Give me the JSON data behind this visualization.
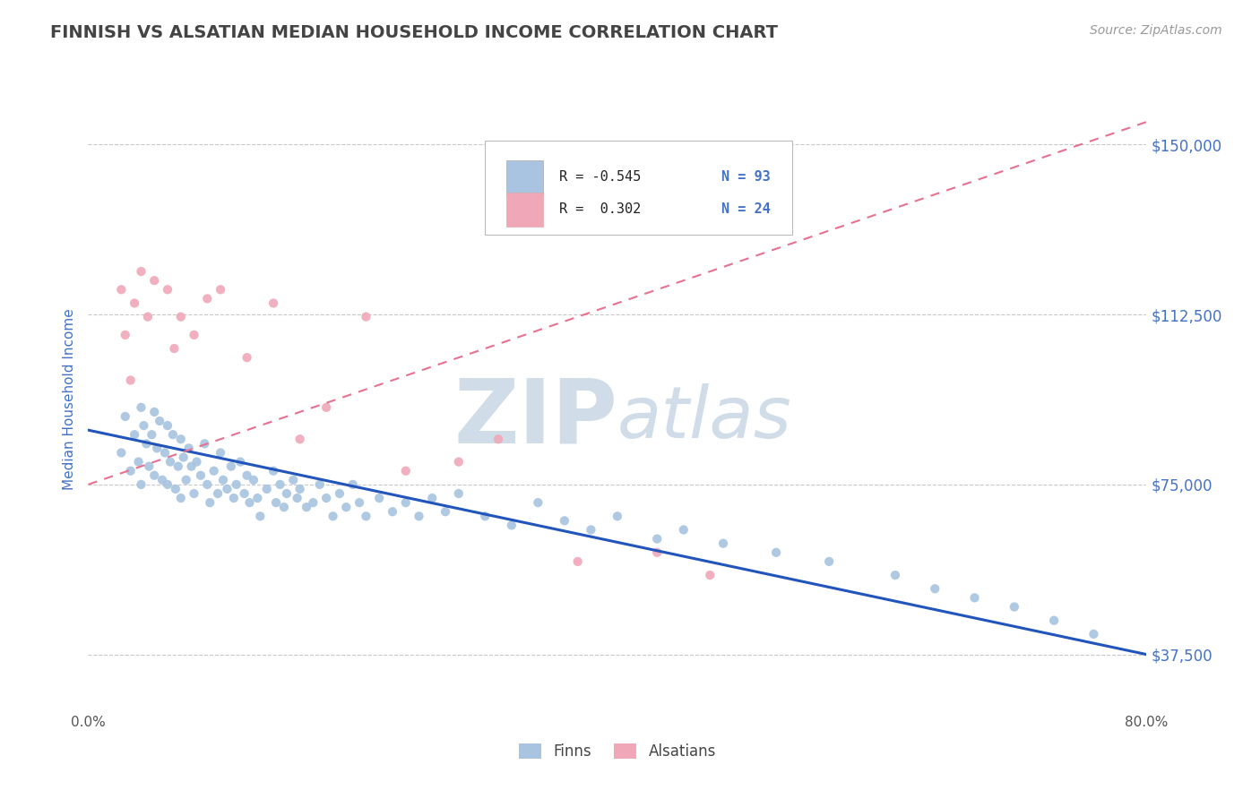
{
  "title": "FINNISH VS ALSATIAN MEDIAN HOUSEHOLD INCOME CORRELATION CHART",
  "source_text": "Source: ZipAtlas.com",
  "ylabel": "Median Household Income",
  "xlim": [
    0.0,
    0.8
  ],
  "ylim": [
    25000,
    162500
  ],
  "yticks": [
    37500,
    75000,
    112500,
    150000
  ],
  "ytick_labels": [
    "$37,500",
    "$75,000",
    "$112,500",
    "$150,000"
  ],
  "xtick_labels": [
    "0.0%",
    "80.0%"
  ],
  "background_color": "#ffffff",
  "grid_color": "#c8c8c8",
  "title_color": "#444444",
  "title_fontsize": 14,
  "finn_color": "#a8c4e0",
  "alsatian_color": "#f0a8b8",
  "finn_line_color": "#2255bb",
  "alsatian_line_color": "#e87090",
  "watermark_color": "#d0dce8",
  "axis_label_color": "#4472c4",
  "ytick_color": "#4472c4",
  "legend_text_color": "#222222",
  "legend_n_color": "#4472c4",
  "finn_scatter_x": [
    0.025,
    0.028,
    0.032,
    0.035,
    0.038,
    0.04,
    0.04,
    0.042,
    0.044,
    0.046,
    0.048,
    0.05,
    0.05,
    0.052,
    0.054,
    0.056,
    0.058,
    0.06,
    0.06,
    0.062,
    0.064,
    0.066,
    0.068,
    0.07,
    0.07,
    0.072,
    0.074,
    0.076,
    0.078,
    0.08,
    0.082,
    0.085,
    0.088,
    0.09,
    0.092,
    0.095,
    0.098,
    0.1,
    0.102,
    0.105,
    0.108,
    0.11,
    0.112,
    0.115,
    0.118,
    0.12,
    0.122,
    0.125,
    0.128,
    0.13,
    0.135,
    0.14,
    0.142,
    0.145,
    0.148,
    0.15,
    0.155,
    0.158,
    0.16,
    0.165,
    0.17,
    0.175,
    0.18,
    0.185,
    0.19,
    0.195,
    0.2,
    0.205,
    0.21,
    0.22,
    0.23,
    0.24,
    0.25,
    0.26,
    0.27,
    0.28,
    0.3,
    0.32,
    0.34,
    0.36,
    0.38,
    0.4,
    0.43,
    0.45,
    0.48,
    0.52,
    0.56,
    0.61,
    0.64,
    0.67,
    0.7,
    0.73,
    0.76
  ],
  "finn_scatter_y": [
    82000,
    90000,
    78000,
    86000,
    80000,
    92000,
    75000,
    88000,
    84000,
    79000,
    86000,
    91000,
    77000,
    83000,
    89000,
    76000,
    82000,
    88000,
    75000,
    80000,
    86000,
    74000,
    79000,
    85000,
    72000,
    81000,
    76000,
    83000,
    79000,
    73000,
    80000,
    77000,
    84000,
    75000,
    71000,
    78000,
    73000,
    82000,
    76000,
    74000,
    79000,
    72000,
    75000,
    80000,
    73000,
    77000,
    71000,
    76000,
    72000,
    68000,
    74000,
    78000,
    71000,
    75000,
    70000,
    73000,
    76000,
    72000,
    74000,
    70000,
    71000,
    75000,
    72000,
    68000,
    73000,
    70000,
    75000,
    71000,
    68000,
    72000,
    69000,
    71000,
    68000,
    72000,
    69000,
    73000,
    68000,
    66000,
    71000,
    67000,
    65000,
    68000,
    63000,
    65000,
    62000,
    60000,
    58000,
    55000,
    52000,
    50000,
    48000,
    45000,
    42000
  ],
  "alsatian_scatter_x": [
    0.025,
    0.028,
    0.032,
    0.035,
    0.04,
    0.045,
    0.05,
    0.06,
    0.065,
    0.07,
    0.08,
    0.09,
    0.1,
    0.12,
    0.14,
    0.16,
    0.18,
    0.21,
    0.24,
    0.28,
    0.31,
    0.37,
    0.43,
    0.47
  ],
  "alsatian_scatter_y": [
    118000,
    108000,
    98000,
    115000,
    122000,
    112000,
    120000,
    118000,
    105000,
    112000,
    108000,
    116000,
    118000,
    103000,
    115000,
    85000,
    92000,
    112000,
    78000,
    80000,
    85000,
    58000,
    60000,
    55000
  ],
  "finn_line_x0": 0.0,
  "finn_line_x1": 0.8,
  "finn_line_y0": 87000,
  "finn_line_y1": 37500,
  "als_line_x0": 0.0,
  "als_line_x1": 0.8,
  "als_line_y0": 75000,
  "als_line_y1": 155000
}
